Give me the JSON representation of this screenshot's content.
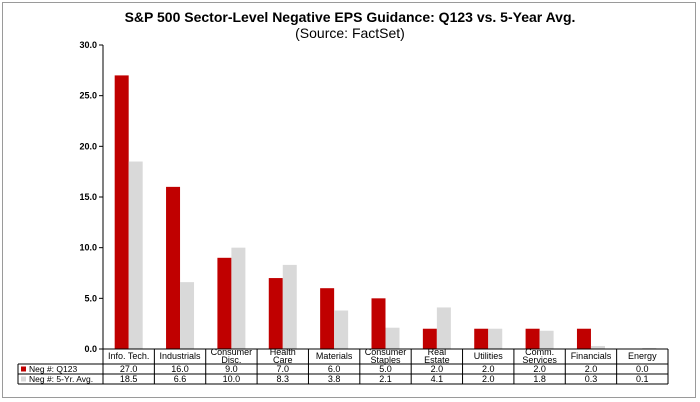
{
  "chart_data": {
    "type": "bar",
    "title": "S&P 500 Sector-Level Negative EPS Guidance: Q123 vs. 5-Year Avg.",
    "subtitle": "(Source: FactSet)",
    "categories": [
      [
        "Info. Tech."
      ],
      [
        "Industrials"
      ],
      [
        "Consumer",
        "Disc."
      ],
      [
        "Health",
        "Care"
      ],
      [
        "Materials"
      ],
      [
        "Consumer",
        "Staples"
      ],
      [
        "Real",
        "Estate"
      ],
      [
        "Utilities"
      ],
      [
        "Comm.",
        "Services"
      ],
      [
        "Financials"
      ],
      [
        "Energy"
      ]
    ],
    "series": [
      {
        "name": "Neg #: Q123",
        "color": "#c00000",
        "values": [
          27.0,
          16.0,
          9.0,
          7.0,
          6.0,
          5.0,
          2.0,
          2.0,
          2.0,
          2.0,
          0.0
        ],
        "labels": [
          "27.0",
          "16.0",
          "9.0",
          "7.0",
          "6.0",
          "5.0",
          "2.0",
          "2.0",
          "2.0",
          "2.0",
          "0.0"
        ]
      },
      {
        "name": "Neg #: 5-Yr. Avg.",
        "color": "#d9d9d9",
        "values": [
          18.5,
          6.6,
          10.0,
          8.3,
          3.8,
          2.1,
          4.1,
          2.0,
          1.8,
          0.3,
          0.1
        ],
        "labels": [
          "18.5",
          "6.6",
          "10.0",
          "8.3",
          "3.8",
          "2.1",
          "4.1",
          "2.0",
          "1.8",
          "0.3",
          "0.1"
        ]
      }
    ],
    "ylim": [
      0,
      30
    ],
    "yticks": [
      "0.0",
      "5.0",
      "10.0",
      "15.0",
      "20.0",
      "25.0",
      "30.0"
    ],
    "ytick_values": [
      0,
      5,
      10,
      15,
      20,
      25,
      30
    ],
    "grid": false,
    "legend": "data-table-below"
  }
}
